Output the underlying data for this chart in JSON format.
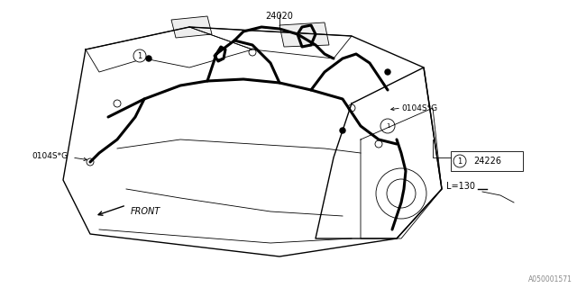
{
  "title": "",
  "background_color": "#ffffff",
  "border_color": "#000000",
  "line_color": "#000000",
  "text_color": "#000000",
  "fig_width": 6.4,
  "fig_height": 3.2,
  "dpi": 100,
  "part_number_24020": "24020",
  "part_number_24226": "24226",
  "part_number_0104S_G": "0104S*G",
  "label_front": "FRONT",
  "label_L130": "L=130",
  "watermark": "A050001571",
  "circle_label": "1"
}
